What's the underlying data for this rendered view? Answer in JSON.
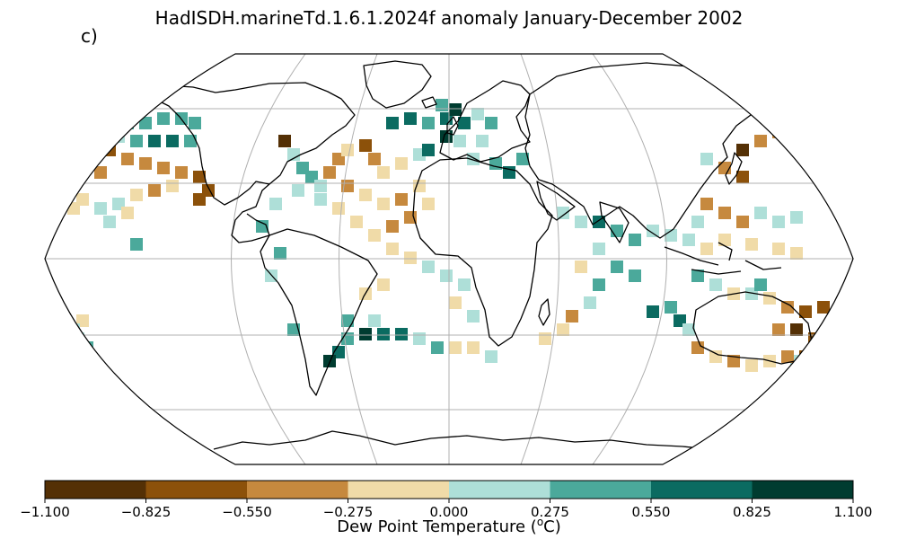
{
  "title": "HadISDH.marineTd.1.6.1.2024f anomaly January-December 2002",
  "panel_label": "c)",
  "colorbar": {
    "label_prefix": "Dew Point Temperature (",
    "label_sup": "o",
    "label_suffix": "C)",
    "ticks": [
      "−1.100",
      "−0.825",
      "−0.550",
      "−0.275",
      "0.000",
      "0.275",
      "0.550",
      "0.825",
      "1.100"
    ],
    "colors": [
      "#543005",
      "#8c510a",
      "#c6893e",
      "#f0dba8",
      "#aedfd8",
      "#4ba99b",
      "#0b6b61",
      "#003c30"
    ]
  },
  "map": {
    "projection": "robinson",
    "grid_longitudes": [
      -180,
      -120,
      -60,
      0,
      60,
      120,
      180
    ],
    "grid_latitudes": [
      -60,
      -30,
      0,
      30,
      60
    ],
    "coast_color": "#000000",
    "grid_color": "#b0b0b0"
  }
}
